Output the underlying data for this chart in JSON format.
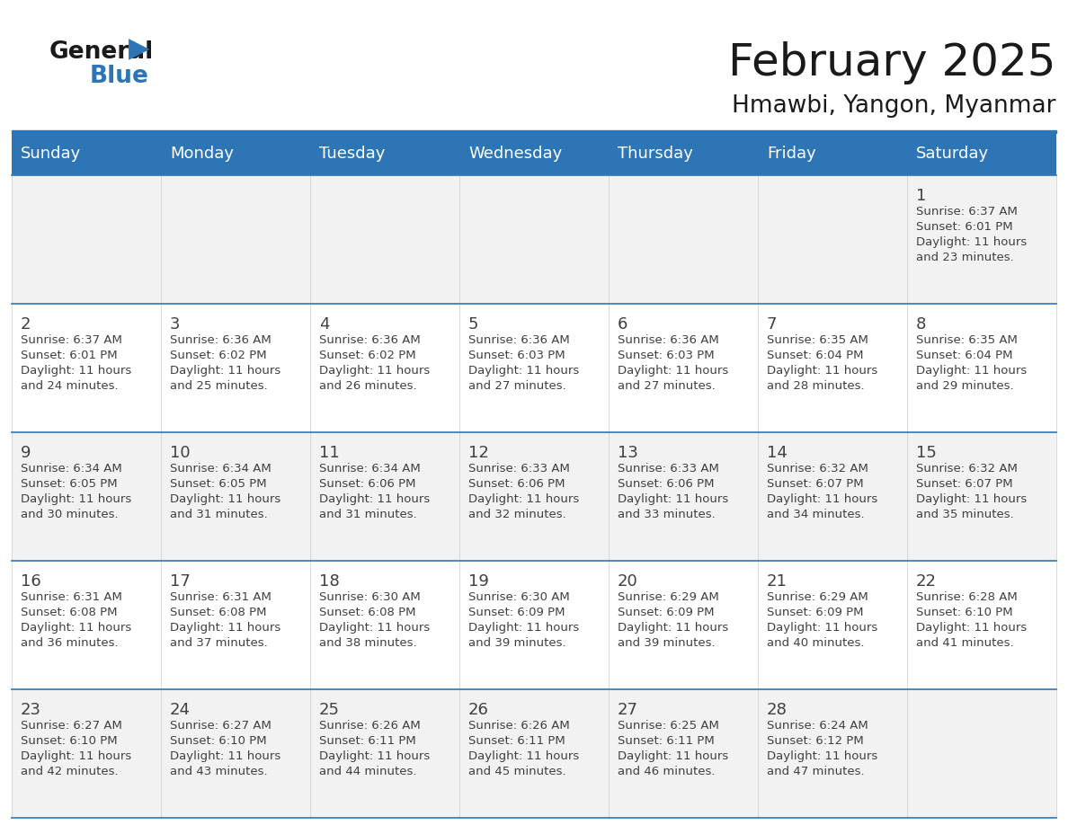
{
  "title": "February 2025",
  "subtitle": "Hmawbi, Yangon, Myanmar",
  "days_of_week": [
    "Sunday",
    "Monday",
    "Tuesday",
    "Wednesday",
    "Thursday",
    "Friday",
    "Saturday"
  ],
  "header_bg": "#2E75B6",
  "header_text": "#FFFFFF",
  "cell_bg_odd": "#F2F2F2",
  "cell_bg_even": "#FFFFFF",
  "grid_line_color": "#2E75B6",
  "text_color": "#404040",
  "title_color": "#1a1a1a",
  "calendar_data": [
    [
      null,
      null,
      null,
      null,
      null,
      null,
      {
        "day": 1,
        "sunrise": "6:37 AM",
        "sunset": "6:01 PM",
        "daylight_hours": 11,
        "daylight_minutes": 23
      }
    ],
    [
      {
        "day": 2,
        "sunrise": "6:37 AM",
        "sunset": "6:01 PM",
        "daylight_hours": 11,
        "daylight_minutes": 24
      },
      {
        "day": 3,
        "sunrise": "6:36 AM",
        "sunset": "6:02 PM",
        "daylight_hours": 11,
        "daylight_minutes": 25
      },
      {
        "day": 4,
        "sunrise": "6:36 AM",
        "sunset": "6:02 PM",
        "daylight_hours": 11,
        "daylight_minutes": 26
      },
      {
        "day": 5,
        "sunrise": "6:36 AM",
        "sunset": "6:03 PM",
        "daylight_hours": 11,
        "daylight_minutes": 27
      },
      {
        "day": 6,
        "sunrise": "6:36 AM",
        "sunset": "6:03 PM",
        "daylight_hours": 11,
        "daylight_minutes": 27
      },
      {
        "day": 7,
        "sunrise": "6:35 AM",
        "sunset": "6:04 PM",
        "daylight_hours": 11,
        "daylight_minutes": 28
      },
      {
        "day": 8,
        "sunrise": "6:35 AM",
        "sunset": "6:04 PM",
        "daylight_hours": 11,
        "daylight_minutes": 29
      }
    ],
    [
      {
        "day": 9,
        "sunrise": "6:34 AM",
        "sunset": "6:05 PM",
        "daylight_hours": 11,
        "daylight_minutes": 30
      },
      {
        "day": 10,
        "sunrise": "6:34 AM",
        "sunset": "6:05 PM",
        "daylight_hours": 11,
        "daylight_minutes": 31
      },
      {
        "day": 11,
        "sunrise": "6:34 AM",
        "sunset": "6:06 PM",
        "daylight_hours": 11,
        "daylight_minutes": 31
      },
      {
        "day": 12,
        "sunrise": "6:33 AM",
        "sunset": "6:06 PM",
        "daylight_hours": 11,
        "daylight_minutes": 32
      },
      {
        "day": 13,
        "sunrise": "6:33 AM",
        "sunset": "6:06 PM",
        "daylight_hours": 11,
        "daylight_minutes": 33
      },
      {
        "day": 14,
        "sunrise": "6:32 AM",
        "sunset": "6:07 PM",
        "daylight_hours": 11,
        "daylight_minutes": 34
      },
      {
        "day": 15,
        "sunrise": "6:32 AM",
        "sunset": "6:07 PM",
        "daylight_hours": 11,
        "daylight_minutes": 35
      }
    ],
    [
      {
        "day": 16,
        "sunrise": "6:31 AM",
        "sunset": "6:08 PM",
        "daylight_hours": 11,
        "daylight_minutes": 36
      },
      {
        "day": 17,
        "sunrise": "6:31 AM",
        "sunset": "6:08 PM",
        "daylight_hours": 11,
        "daylight_minutes": 37
      },
      {
        "day": 18,
        "sunrise": "6:30 AM",
        "sunset": "6:08 PM",
        "daylight_hours": 11,
        "daylight_minutes": 38
      },
      {
        "day": 19,
        "sunrise": "6:30 AM",
        "sunset": "6:09 PM",
        "daylight_hours": 11,
        "daylight_minutes": 39
      },
      {
        "day": 20,
        "sunrise": "6:29 AM",
        "sunset": "6:09 PM",
        "daylight_hours": 11,
        "daylight_minutes": 39
      },
      {
        "day": 21,
        "sunrise": "6:29 AM",
        "sunset": "6:09 PM",
        "daylight_hours": 11,
        "daylight_minutes": 40
      },
      {
        "day": 22,
        "sunrise": "6:28 AM",
        "sunset": "6:10 PM",
        "daylight_hours": 11,
        "daylight_minutes": 41
      }
    ],
    [
      {
        "day": 23,
        "sunrise": "6:27 AM",
        "sunset": "6:10 PM",
        "daylight_hours": 11,
        "daylight_minutes": 42
      },
      {
        "day": 24,
        "sunrise": "6:27 AM",
        "sunset": "6:10 PM",
        "daylight_hours": 11,
        "daylight_minutes": 43
      },
      {
        "day": 25,
        "sunrise": "6:26 AM",
        "sunset": "6:11 PM",
        "daylight_hours": 11,
        "daylight_minutes": 44
      },
      {
        "day": 26,
        "sunrise": "6:26 AM",
        "sunset": "6:11 PM",
        "daylight_hours": 11,
        "daylight_minutes": 45
      },
      {
        "day": 27,
        "sunrise": "6:25 AM",
        "sunset": "6:11 PM",
        "daylight_hours": 11,
        "daylight_minutes": 46
      },
      {
        "day": 28,
        "sunrise": "6:24 AM",
        "sunset": "6:12 PM",
        "daylight_hours": 11,
        "daylight_minutes": 47
      },
      null
    ]
  ]
}
